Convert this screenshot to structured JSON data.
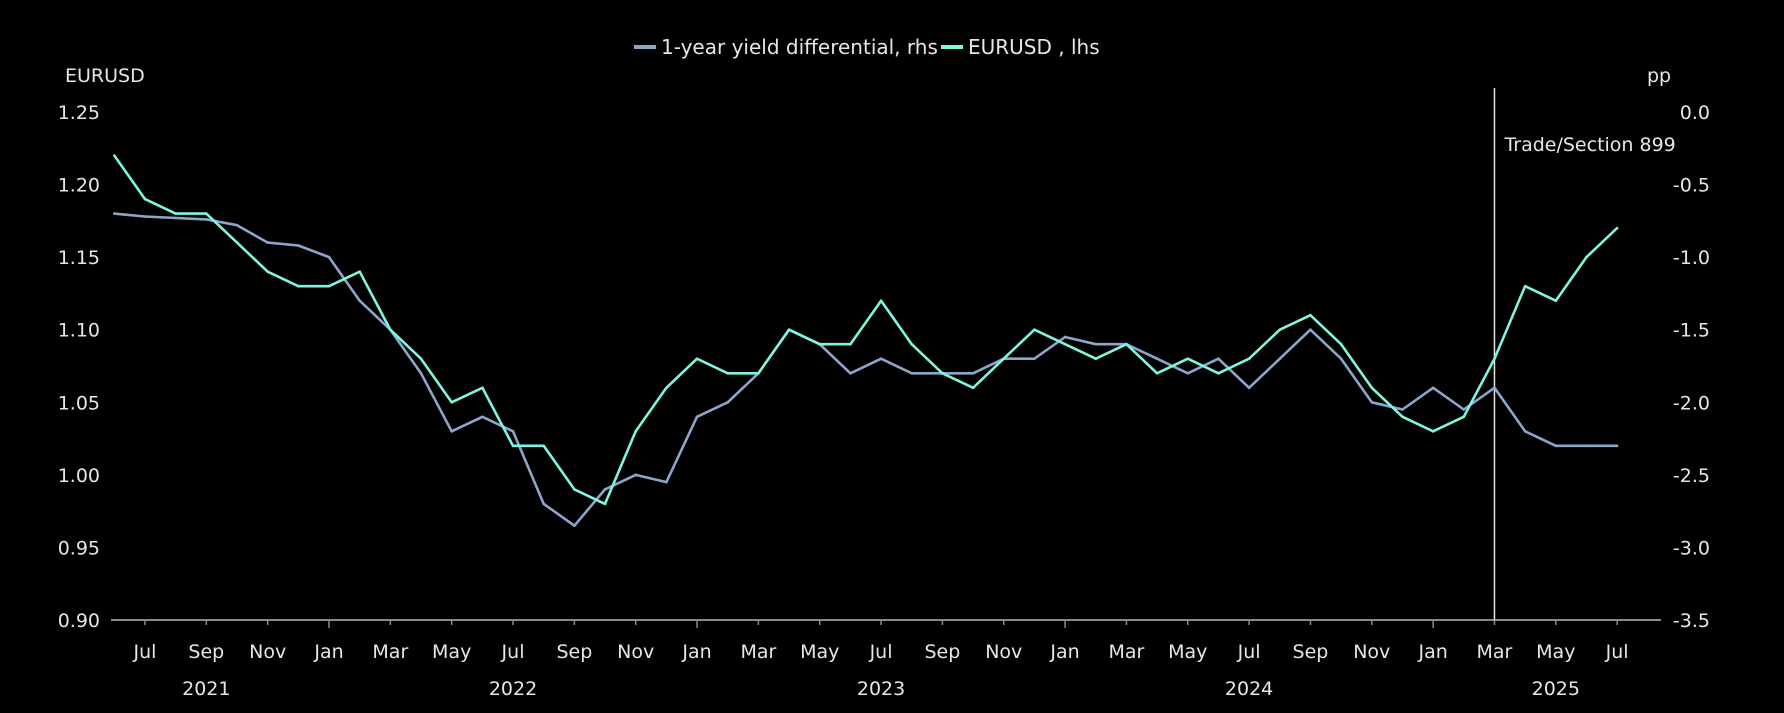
{
  "chart_data": {
    "type": "line",
    "title": "",
    "legend": {
      "placement": "top-center",
      "entries": [
        "1-year yield differential, rhs",
        "EURUSD , lhs"
      ]
    },
    "left_axis": {
      "label": "EURUSD",
      "ylim": [
        0.9,
        1.25
      ],
      "ticks": [
        "1.25",
        "1.20",
        "1.15",
        "1.10",
        "1.05",
        "1.00",
        "0.95",
        "0.90"
      ]
    },
    "right_axis": {
      "label": "pp",
      "ylim": [
        -3.5,
        0.0
      ],
      "ticks": [
        "0.0",
        "-0.5",
        "-1.0",
        "-1.5",
        "-2.0",
        "-2.5",
        "-3.0",
        "-3.5"
      ]
    },
    "x_axis": {
      "month_ticks": [
        {
          "date": "2021-07-01",
          "label": "Jul"
        },
        {
          "date": "2021-09-01",
          "label": "Sep"
        },
        {
          "date": "2021-11-01",
          "label": "Nov"
        },
        {
          "date": "2022-01-01",
          "label": "Jan"
        },
        {
          "date": "2022-03-01",
          "label": "Mar"
        },
        {
          "date": "2022-05-01",
          "label": "May"
        },
        {
          "date": "2022-07-01",
          "label": "Jul"
        },
        {
          "date": "2022-09-01",
          "label": "Sep"
        },
        {
          "date": "2022-11-01",
          "label": "Nov"
        },
        {
          "date": "2023-01-01",
          "label": "Jan"
        },
        {
          "date": "2023-03-01",
          "label": "Mar"
        },
        {
          "date": "2023-05-01",
          "label": "May"
        },
        {
          "date": "2023-07-01",
          "label": "Jul"
        },
        {
          "date": "2023-09-01",
          "label": "Sep"
        },
        {
          "date": "2023-11-01",
          "label": "Nov"
        },
        {
          "date": "2024-01-01",
          "label": "Jan"
        },
        {
          "date": "2024-03-01",
          "label": "Mar"
        },
        {
          "date": "2024-05-01",
          "label": "May"
        },
        {
          "date": "2024-07-01",
          "label": "Jul"
        },
        {
          "date": "2024-09-01",
          "label": "Sep"
        },
        {
          "date": "2024-11-01",
          "label": "Nov"
        },
        {
          "date": "2025-01-01",
          "label": "Jan"
        },
        {
          "date": "2025-03-01",
          "label": "Mar"
        },
        {
          "date": "2025-05-01",
          "label": "May"
        },
        {
          "date": "2025-07-01",
          "label": "Jul"
        }
      ],
      "year_labels": [
        {
          "date": "2021-09-01",
          "label": "2021"
        },
        {
          "date": "2022-07-01",
          "label": "2022"
        },
        {
          "date": "2023-07-01",
          "label": "2023"
        },
        {
          "date": "2024-07-01",
          "label": "2024"
        },
        {
          "date": "2025-05-01",
          "label": "2025"
        }
      ]
    },
    "annotation": {
      "date": "2025-03-01",
      "label": "Trade/Section 899"
    },
    "dates": [
      "2021-06-01",
      "2021-07-01",
      "2021-08-01",
      "2021-09-01",
      "2021-10-01",
      "2021-11-01",
      "2021-12-01",
      "2022-01-01",
      "2022-02-01",
      "2022-03-01",
      "2022-04-01",
      "2022-05-01",
      "2022-06-01",
      "2022-07-01",
      "2022-08-01",
      "2022-09-01",
      "2022-10-01",
      "2022-11-01",
      "2022-12-01",
      "2023-01-01",
      "2023-02-01",
      "2023-03-01",
      "2023-04-01",
      "2023-05-01",
      "2023-06-01",
      "2023-07-01",
      "2023-08-01",
      "2023-09-01",
      "2023-10-01",
      "2023-11-01",
      "2023-12-01",
      "2024-01-01",
      "2024-02-01",
      "2024-03-01",
      "2024-04-01",
      "2024-05-01",
      "2024-06-01",
      "2024-07-01",
      "2024-08-01",
      "2024-09-01",
      "2024-10-01",
      "2024-11-01",
      "2024-12-01",
      "2025-01-01",
      "2025-02-01",
      "2025-03-01",
      "2025-04-01",
      "2025-05-01",
      "2025-06-01",
      "2025-07-01"
    ],
    "series": [
      {
        "name": "1-year yield differential, rhs",
        "axis": "right",
        "color": "#8da6c8",
        "values": [
          -0.7,
          -0.72,
          -0.73,
          -0.74,
          -0.78,
          -0.9,
          -0.92,
          -1.0,
          -1.3,
          -1.5,
          -1.8,
          -2.2,
          -2.1,
          -2.2,
          -2.7,
          -2.85,
          -2.6,
          -2.5,
          -2.55,
          -2.1,
          -2.0,
          -1.8,
          -1.5,
          -1.6,
          -1.8,
          -1.7,
          -1.8,
          -1.8,
          -1.8,
          -1.7,
          -1.7,
          -1.55,
          -1.6,
          -1.6,
          -1.7,
          -1.8,
          -1.7,
          -1.9,
          -1.7,
          -1.5,
          -1.7,
          -2.0,
          -2.05,
          -1.9,
          -2.05,
          -1.9,
          -2.2,
          -2.3,
          -2.3,
          -2.3
        ]
      },
      {
        "name": "EURUSD , lhs",
        "axis": "left",
        "color": "#7ff5e0",
        "values": [
          1.22,
          1.19,
          1.18,
          1.18,
          1.16,
          1.14,
          1.13,
          1.13,
          1.14,
          1.1,
          1.08,
          1.05,
          1.06,
          1.02,
          1.02,
          0.99,
          0.98,
          1.03,
          1.06,
          1.08,
          1.07,
          1.07,
          1.1,
          1.09,
          1.09,
          1.12,
          1.09,
          1.07,
          1.06,
          1.08,
          1.1,
          1.09,
          1.08,
          1.09,
          1.07,
          1.08,
          1.07,
          1.08,
          1.1,
          1.11,
          1.09,
          1.06,
          1.04,
          1.03,
          1.04,
          1.08,
          1.13,
          1.12,
          1.15,
          1.17
        ]
      }
    ]
  }
}
